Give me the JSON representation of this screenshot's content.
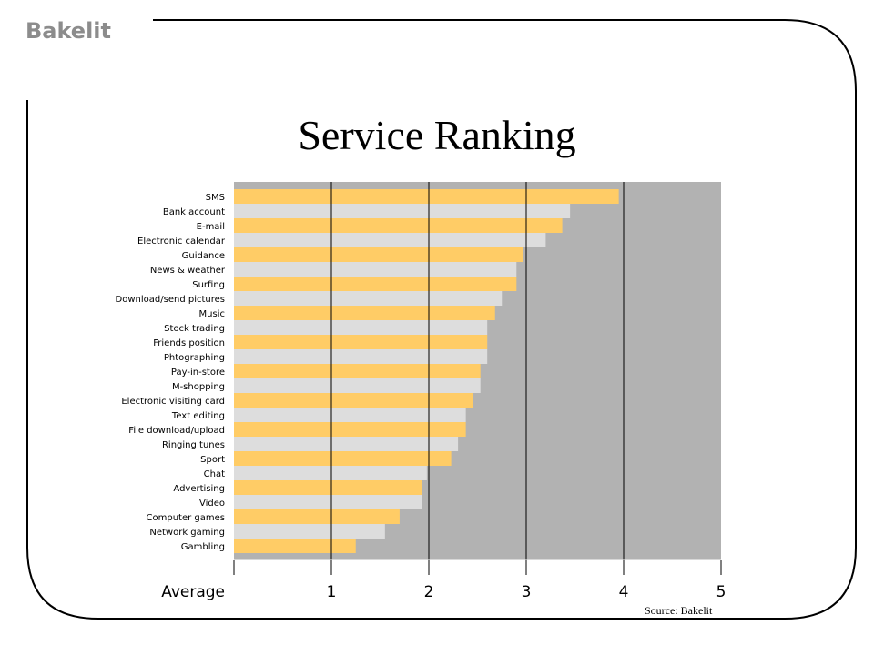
{
  "brand": "Bakelit",
  "source": "Source: Bakelit",
  "colors": {
    "bar_a": "#ffcc66",
    "bar_b": "#dddddd",
    "background_plot": "#b2b2b2",
    "frame": "#000000"
  },
  "chart_data": {
    "type": "bar",
    "orientation": "horizontal",
    "title": "Service Ranking",
    "xlabel": "Average",
    "xlim": [
      0,
      5
    ],
    "ticks": [
      1,
      2,
      3,
      4,
      5
    ],
    "grid": true,
    "categories": [
      "SMS",
      "Bank account",
      "E-mail",
      "Electronic calendar",
      "Guidance",
      "News & weather",
      "Surfing",
      "Download/send pictures",
      "Music",
      "Stock trading",
      "Friends position",
      "Phtographing",
      "Pay-in-store",
      "M-shopping",
      "Electronic visiting card",
      "Text editing",
      "File download/upload",
      "Ringing tunes",
      "Sport",
      "Chat",
      "Advertising",
      "Video",
      "Computer games",
      "Network gaming",
      "Gambling"
    ],
    "values": [
      3.95,
      3.45,
      3.37,
      3.2,
      2.97,
      2.9,
      2.9,
      2.75,
      2.68,
      2.6,
      2.6,
      2.6,
      2.53,
      2.53,
      2.45,
      2.38,
      2.38,
      2.3,
      2.23,
      1.98,
      1.93,
      1.93,
      1.7,
      1.55,
      1.25
    ]
  }
}
